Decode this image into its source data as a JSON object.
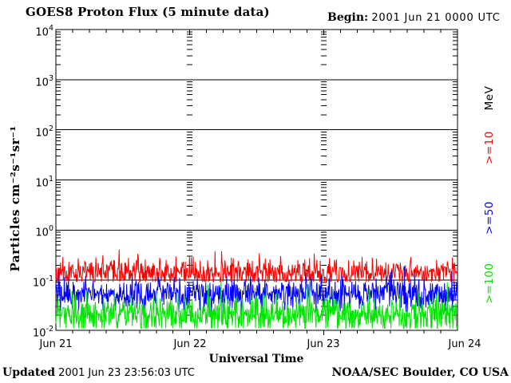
{
  "window": {
    "background": "#ffffff"
  },
  "header": {
    "title": "GOES8 Proton Flux (5 minute data)",
    "begin_label": "Begin:",
    "begin_value": "2001 Jun 21 0000 UTC"
  },
  "footer": {
    "updated_label": "Updated",
    "updated_value": "2001 Jun 23 23:56:03 UTC",
    "credit": "NOAA/SEC Boulder, CO USA"
  },
  "chart_data": {
    "type": "line",
    "title": "GOES8 Proton Flux (5 minute data)",
    "begin_utc": "2001 Jun 21 0000 UTC",
    "xlabel": "Universal Time",
    "ylabel": "Particles cm⁻²s⁻¹sr⁻¹",
    "x_ticks": [
      "Jun 21",
      "Jun 22",
      "Jun 23",
      "Jun 24"
    ],
    "x_span_days": 3,
    "x_minor_tick_hours": 3,
    "samples_per_day": 288,
    "y_scale": "log",
    "y_range_exponents": [
      -2,
      4
    ],
    "y_tick_exponents": [
      "4",
      "3",
      "2",
      "1",
      "0",
      "-1",
      "-2"
    ],
    "right_axis_unit": "MeV",
    "axis_color": "#000000",
    "grid": {
      "horizontal_decades": "solid",
      "day_boundaries": "log-minor tick dashes at Jun 22 and Jun 23"
    },
    "series": [
      {
        "name": ">=10 MeV protons",
        "label": ">=10",
        "color": "#ff0000",
        "typical_flux": 0.14,
        "flux_min": 0.09,
        "flux_max": 0.5,
        "gen": {
          "seed": 11,
          "base": -0.85,
          "std": 0.13,
          "spike_p": 0.018,
          "spike_amp": 0.3,
          "down_p": 0,
          "down_amp": 0,
          "clamp": [
            -1.03,
            -0.3
          ]
        }
      },
      {
        "name": ">=50 MeV protons",
        "label": ">=50",
        "color": "#0000ff",
        "typical_flux": 0.054,
        "flux_min": 0.024,
        "flux_max": 0.19,
        "gen": {
          "seed": 22,
          "base": -1.27,
          "std": 0.16,
          "spike_p": 0.012,
          "spike_amp": 0.32,
          "down_p": 0.06,
          "down_amp": 0.2,
          "clamp": [
            -1.63,
            -0.72
          ]
        }
      },
      {
        "name": ">=100 MeV protons",
        "label": ">=100",
        "color": "#00e400",
        "typical_flux": 0.022,
        "flux_min": 0.011,
        "flux_max": 0.09,
        "gen": {
          "seed": 33,
          "base": -1.66,
          "std": 0.17,
          "spike_p": 0.015,
          "spike_amp": 0.55,
          "down_p": 0.15,
          "down_amp": 0.3,
          "clamp": [
            -1.96,
            -1.02
          ]
        }
      }
    ]
  }
}
